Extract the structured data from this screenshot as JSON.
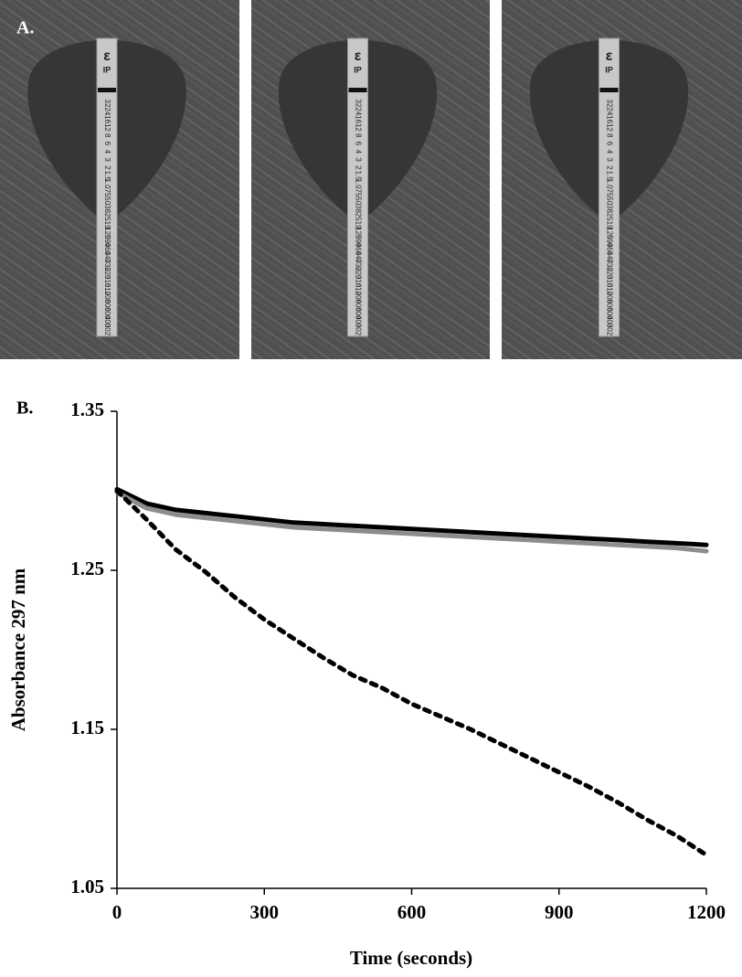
{
  "panel_a": {
    "label": "A.",
    "strip_code": "IP",
    "strip_scale": [
      "32",
      "24",
      "16",
      "12",
      "8",
      "6",
      "4",
      "3",
      "2",
      "1.5",
      "1.0",
      ".75",
      ".50",
      ".38",
      ".25",
      ".19",
      ".125",
      ".094",
      ".064",
      ".047",
      ".032",
      ".023",
      ".016",
      ".012",
      ".008",
      ".006",
      ".004",
      ".003",
      ".002"
    ]
  },
  "chart_data": {
    "type": "line",
    "panel_label": "B.",
    "x_label": "Time (seconds)",
    "y_label": "Absorbance 297 nm",
    "x": [
      0,
      60,
      120,
      180,
      240,
      300,
      360,
      420,
      480,
      540,
      600,
      660,
      720,
      780,
      840,
      900,
      960,
      1020,
      1080,
      1140,
      1200
    ],
    "series": [
      {
        "color": "#000000",
        "style": "solid",
        "values": [
          1.301,
          1.292,
          1.288,
          1.286,
          1.284,
          1.282,
          1.28,
          1.279,
          1.278,
          1.277,
          1.276,
          1.275,
          1.274,
          1.273,
          1.272,
          1.271,
          1.27,
          1.269,
          1.268,
          1.267,
          1.266
        ]
      },
      {
        "color": "#8c8c8c",
        "style": "solid",
        "values": [
          1.299,
          1.289,
          1.285,
          1.283,
          1.281,
          1.279,
          1.277,
          1.276,
          1.275,
          1.274,
          1.273,
          1.272,
          1.271,
          1.27,
          1.269,
          1.268,
          1.267,
          1.266,
          1.265,
          1.264,
          1.262
        ]
      },
      {
        "color": "#000000",
        "style": "dashed",
        "values": [
          1.3,
          1.282,
          1.263,
          1.249,
          1.233,
          1.219,
          1.207,
          1.195,
          1.184,
          1.176,
          1.166,
          1.158,
          1.15,
          1.141,
          1.132,
          1.123,
          1.114,
          1.104,
          1.093,
          1.083,
          1.071
        ]
      }
    ],
    "xlim": [
      0,
      1200
    ],
    "xticks": [
      0,
      300,
      600,
      900,
      1200
    ],
    "ylim": [
      1.05,
      1.35
    ],
    "yticks": [
      1.35,
      1.25,
      1.15,
      1.05
    ]
  }
}
